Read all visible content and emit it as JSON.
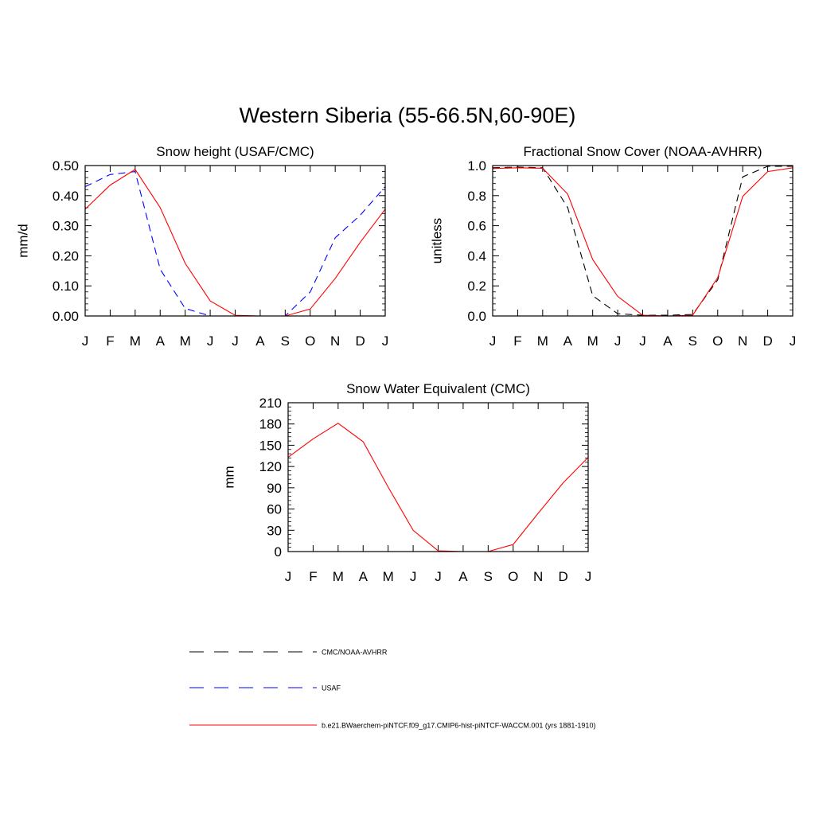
{
  "title": "Western Siberia (55-66.5N,60-90E)",
  "months": [
    "J",
    "F",
    "M",
    "A",
    "M",
    "J",
    "J",
    "A",
    "S",
    "O",
    "N",
    "D",
    "J"
  ],
  "colors": {
    "model": "#ff0000",
    "usaf": "#0000ff",
    "obs": "#000000"
  },
  "legend": [
    {
      "label": "CMC/NOAA-AVHRR",
      "style": "dashed",
      "color": "#000000"
    },
    {
      "label": "USAF",
      "style": "dashed",
      "color": "#0000ff"
    },
    {
      "label": "b.e21.BWaerchem-piNTCF.f09_g17.CMIP6-hist-piNTCF-WACCM.001 (yrs 1881-1910)",
      "style": "solid",
      "color": "#ff0000"
    }
  ],
  "chart_data": [
    {
      "type": "line",
      "title": "Snow height (USAF/CMC)",
      "ylabel": "mm/d",
      "ylim": [
        0,
        0.5
      ],
      "yticks": [
        0,
        0.1,
        0.2,
        0.3,
        0.4,
        0.5
      ],
      "ytick_labels": [
        "0.00",
        "0.10",
        "0.20",
        "0.30",
        "0.40",
        "0.50"
      ],
      "x": [
        "J",
        "F",
        "M",
        "A",
        "M",
        "J",
        "J",
        "A",
        "S",
        "O",
        "N",
        "D",
        "J"
      ],
      "series": [
        {
          "key": "obs",
          "style": "dashed",
          "color": "#000000",
          "values": [
            0,
            0,
            0,
            0,
            0,
            0,
            0,
            0,
            0,
            0,
            0,
            0,
            0
          ]
        },
        {
          "key": "usaf",
          "style": "dashed",
          "color": "#0000ff",
          "values": [
            0.43,
            0.47,
            0.48,
            0.155,
            0.025,
            0.0,
            0.0,
            0.0,
            0.0,
            0.08,
            0.26,
            0.335,
            0.43
          ]
        },
        {
          "key": "model",
          "style": "solid",
          "color": "#ff0000",
          "values": [
            0.355,
            0.435,
            0.487,
            0.36,
            0.175,
            0.05,
            0.002,
            0.0,
            0.0,
            0.023,
            0.125,
            0.245,
            0.355
          ]
        }
      ]
    },
    {
      "type": "line",
      "title": "Fractional Snow Cover (NOAA-AVHRR)",
      "ylabel": "unitless",
      "ylim": [
        0,
        1
      ],
      "yticks": [
        0,
        0.2,
        0.4,
        0.6,
        0.8,
        1.0
      ],
      "ytick_labels": [
        "0.0",
        "0.2",
        "0.4",
        "0.6",
        "0.8",
        "1.0"
      ],
      "x": [
        "J",
        "F",
        "M",
        "A",
        "M",
        "J",
        "J",
        "A",
        "S",
        "O",
        "N",
        "D",
        "J"
      ],
      "series": [
        {
          "key": "obs",
          "style": "dashed",
          "color": "#000000",
          "values": [
            0.985,
            0.99,
            0.985,
            0.72,
            0.135,
            0.015,
            0.005,
            0.005,
            0.01,
            0.24,
            0.925,
            0.995,
            0.995
          ]
        },
        {
          "key": "model",
          "style": "solid",
          "color": "#ff0000",
          "values": [
            0.98,
            0.985,
            0.982,
            0.81,
            0.375,
            0.13,
            0.005,
            0.0,
            0.005,
            0.255,
            0.795,
            0.96,
            0.985
          ]
        }
      ]
    },
    {
      "type": "line",
      "title": "Snow Water Equivalent (CMC)",
      "ylabel": "mm",
      "ylim": [
        0,
        210
      ],
      "yticks": [
        0,
        30,
        60,
        90,
        120,
        150,
        180,
        210
      ],
      "ytick_labels": [
        "0",
        "30",
        "60",
        "90",
        "120",
        "150",
        "180",
        "210"
      ],
      "x": [
        "J",
        "F",
        "M",
        "A",
        "M",
        "J",
        "J",
        "A",
        "S",
        "O",
        "N",
        "D",
        "J"
      ],
      "series": [
        {
          "key": "obs",
          "style": "dashed",
          "color": "#000000",
          "values": [
            0,
            0,
            0,
            0,
            0,
            0,
            0,
            0,
            0,
            0,
            0,
            0,
            0
          ]
        },
        {
          "key": "model",
          "style": "solid",
          "color": "#ff0000",
          "values": [
            133,
            159,
            181,
            155,
            91,
            30,
            1,
            0,
            0,
            10,
            54,
            97,
            133
          ]
        }
      ]
    }
  ]
}
